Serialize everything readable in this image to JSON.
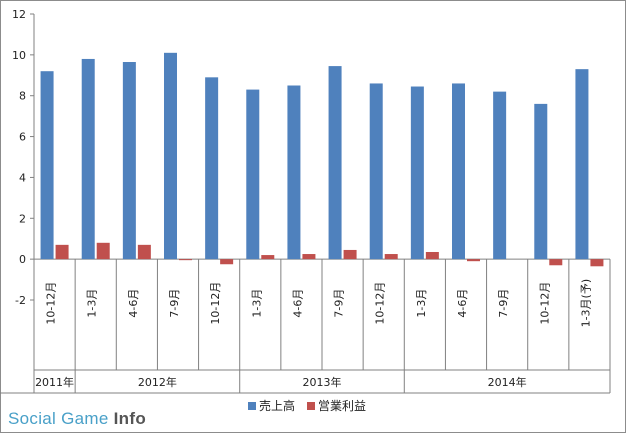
{
  "chart_data": {
    "type": "bar",
    "ylim": [
      -2,
      12
    ],
    "yticks": [
      -2,
      0,
      2,
      4,
      6,
      8,
      10,
      12
    ],
    "grid": false,
    "legend_position": "bottom",
    "categories": [
      "10-12月",
      "1-3月",
      "4-6月",
      "7-9月",
      "10-12月",
      "1-3月",
      "4-6月",
      "7-9月",
      "10-12月",
      "1-3月",
      "4-6月",
      "7-9月",
      "10-12月",
      "1-3月(予)"
    ],
    "years": [
      {
        "label": "2011年",
        "span": 1
      },
      {
        "label": "2012年",
        "span": 4
      },
      {
        "label": "2013年",
        "span": 4
      },
      {
        "label": "2014年",
        "span": 5
      }
    ],
    "series": [
      {
        "name": "売上高",
        "color": "#4f81bd",
        "values": [
          9.2,
          9.8,
          9.65,
          10.1,
          8.9,
          8.3,
          8.5,
          9.45,
          8.6,
          8.45,
          8.6,
          8.2,
          7.6,
          9.3
        ]
      },
      {
        "name": "営業利益",
        "color": "#c0504d",
        "values": [
          0.7,
          0.8,
          0.7,
          -0.05,
          -0.25,
          0.2,
          0.25,
          0.45,
          0.25,
          0.35,
          -0.1,
          0.0,
          -0.3,
          -0.35
        ]
      }
    ]
  },
  "watermark": {
    "prefix": "Social Game ",
    "suffix": "Info"
  }
}
